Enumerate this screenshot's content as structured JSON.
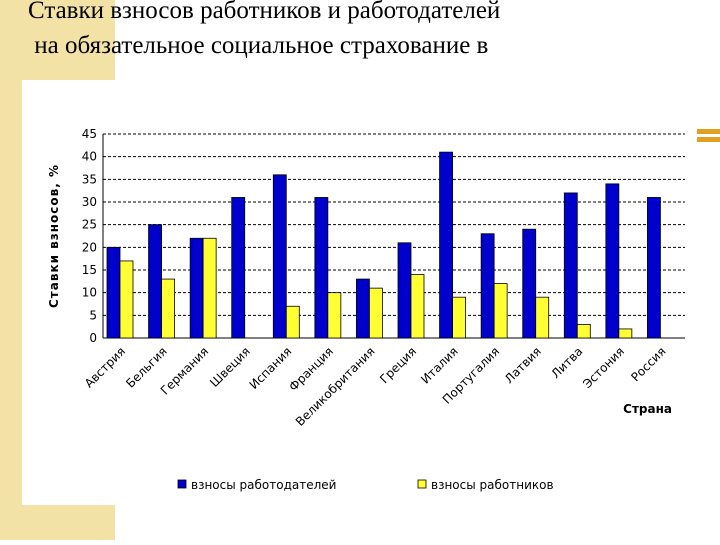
{
  "chart_data": {
    "type": "bar",
    "title": "Ставки взносов работников и работодателей на обязательное социальное страхование в",
    "y_label": "Ставки взносов, %",
    "x_label": "Страна",
    "categories": [
      "Австрия",
      "Бельгия",
      "Германия",
      "Швеция",
      "Испания",
      "Франция",
      "Великобритания",
      "Греция",
      "Италия",
      "Португалия",
      "Латвия",
      "Литва",
      "Эстония",
      "Россия"
    ],
    "series": [
      {
        "name": "взносы работодателей",
        "color": "#0000cc",
        "values": [
          20,
          25,
          22,
          31,
          36,
          31,
          13,
          21,
          41,
          23,
          24,
          32,
          34,
          31
        ]
      },
      {
        "name": "взносы работников",
        "color": "#ffff33",
        "values": [
          17,
          13,
          22,
          null,
          7,
          10,
          11,
          14,
          9,
          12,
          9,
          3,
          2,
          null
        ]
      }
    ],
    "ylim": [
      0,
      45
    ],
    "yticks": [
      0,
      5,
      10,
      15,
      20,
      25,
      30,
      35,
      40,
      45
    ],
    "grid": true,
    "legend": "bottom"
  }
}
